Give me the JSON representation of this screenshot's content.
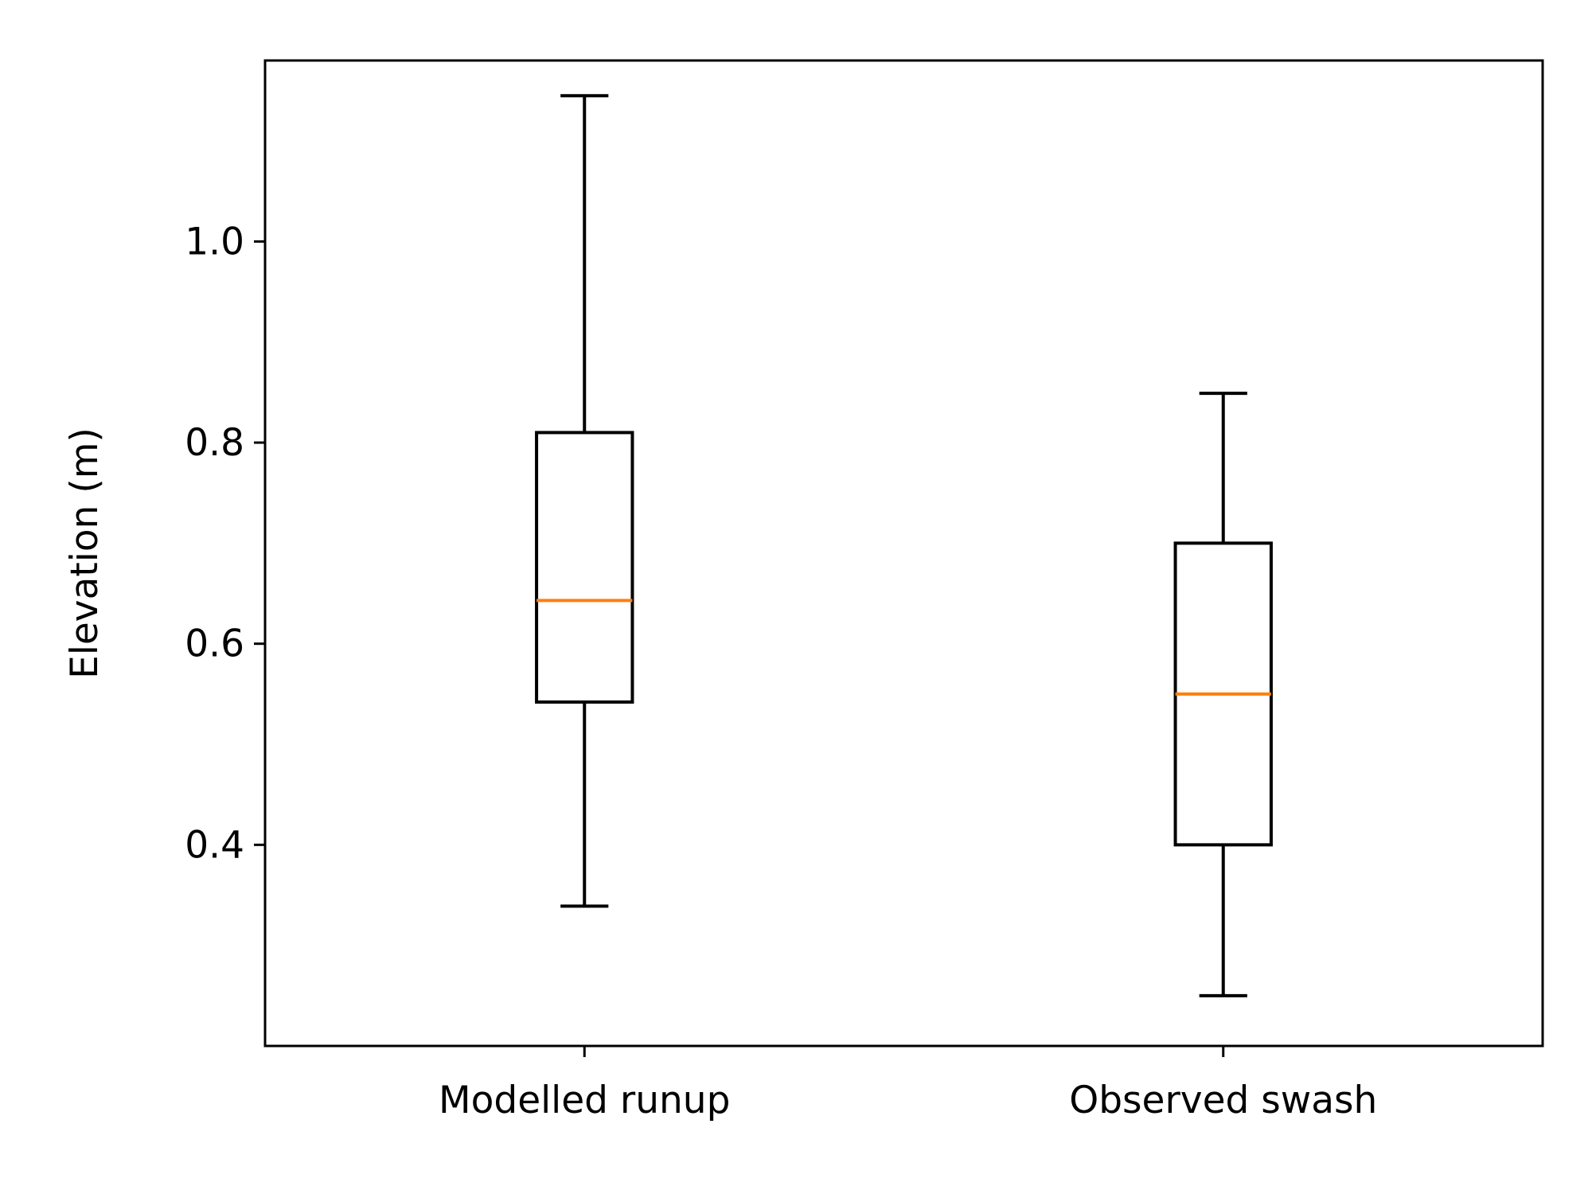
{
  "chart_data": {
    "type": "box",
    "title": "",
    "xlabel": "",
    "ylabel": "Elevation (m)",
    "ylim": [
      0.2,
      1.18
    ],
    "yticks": [
      0.4,
      0.6,
      0.8,
      1.0
    ],
    "ytick_labels": [
      "0.4",
      "0.6",
      "0.8",
      "1.0"
    ],
    "categories": [
      "Modelled runup",
      "Observed swash"
    ],
    "boxes": [
      {
        "whisker_low": 0.339,
        "q1": 0.542,
        "median": 0.643,
        "q3": 0.81,
        "whisker_high": 1.145
      },
      {
        "whisker_low": 0.25,
        "q1": 0.4,
        "median": 0.55,
        "q3": 0.7,
        "whisker_high": 0.849
      }
    ],
    "median_color": "#ff7f0e",
    "box_color": "#000000",
    "grid": false
  }
}
